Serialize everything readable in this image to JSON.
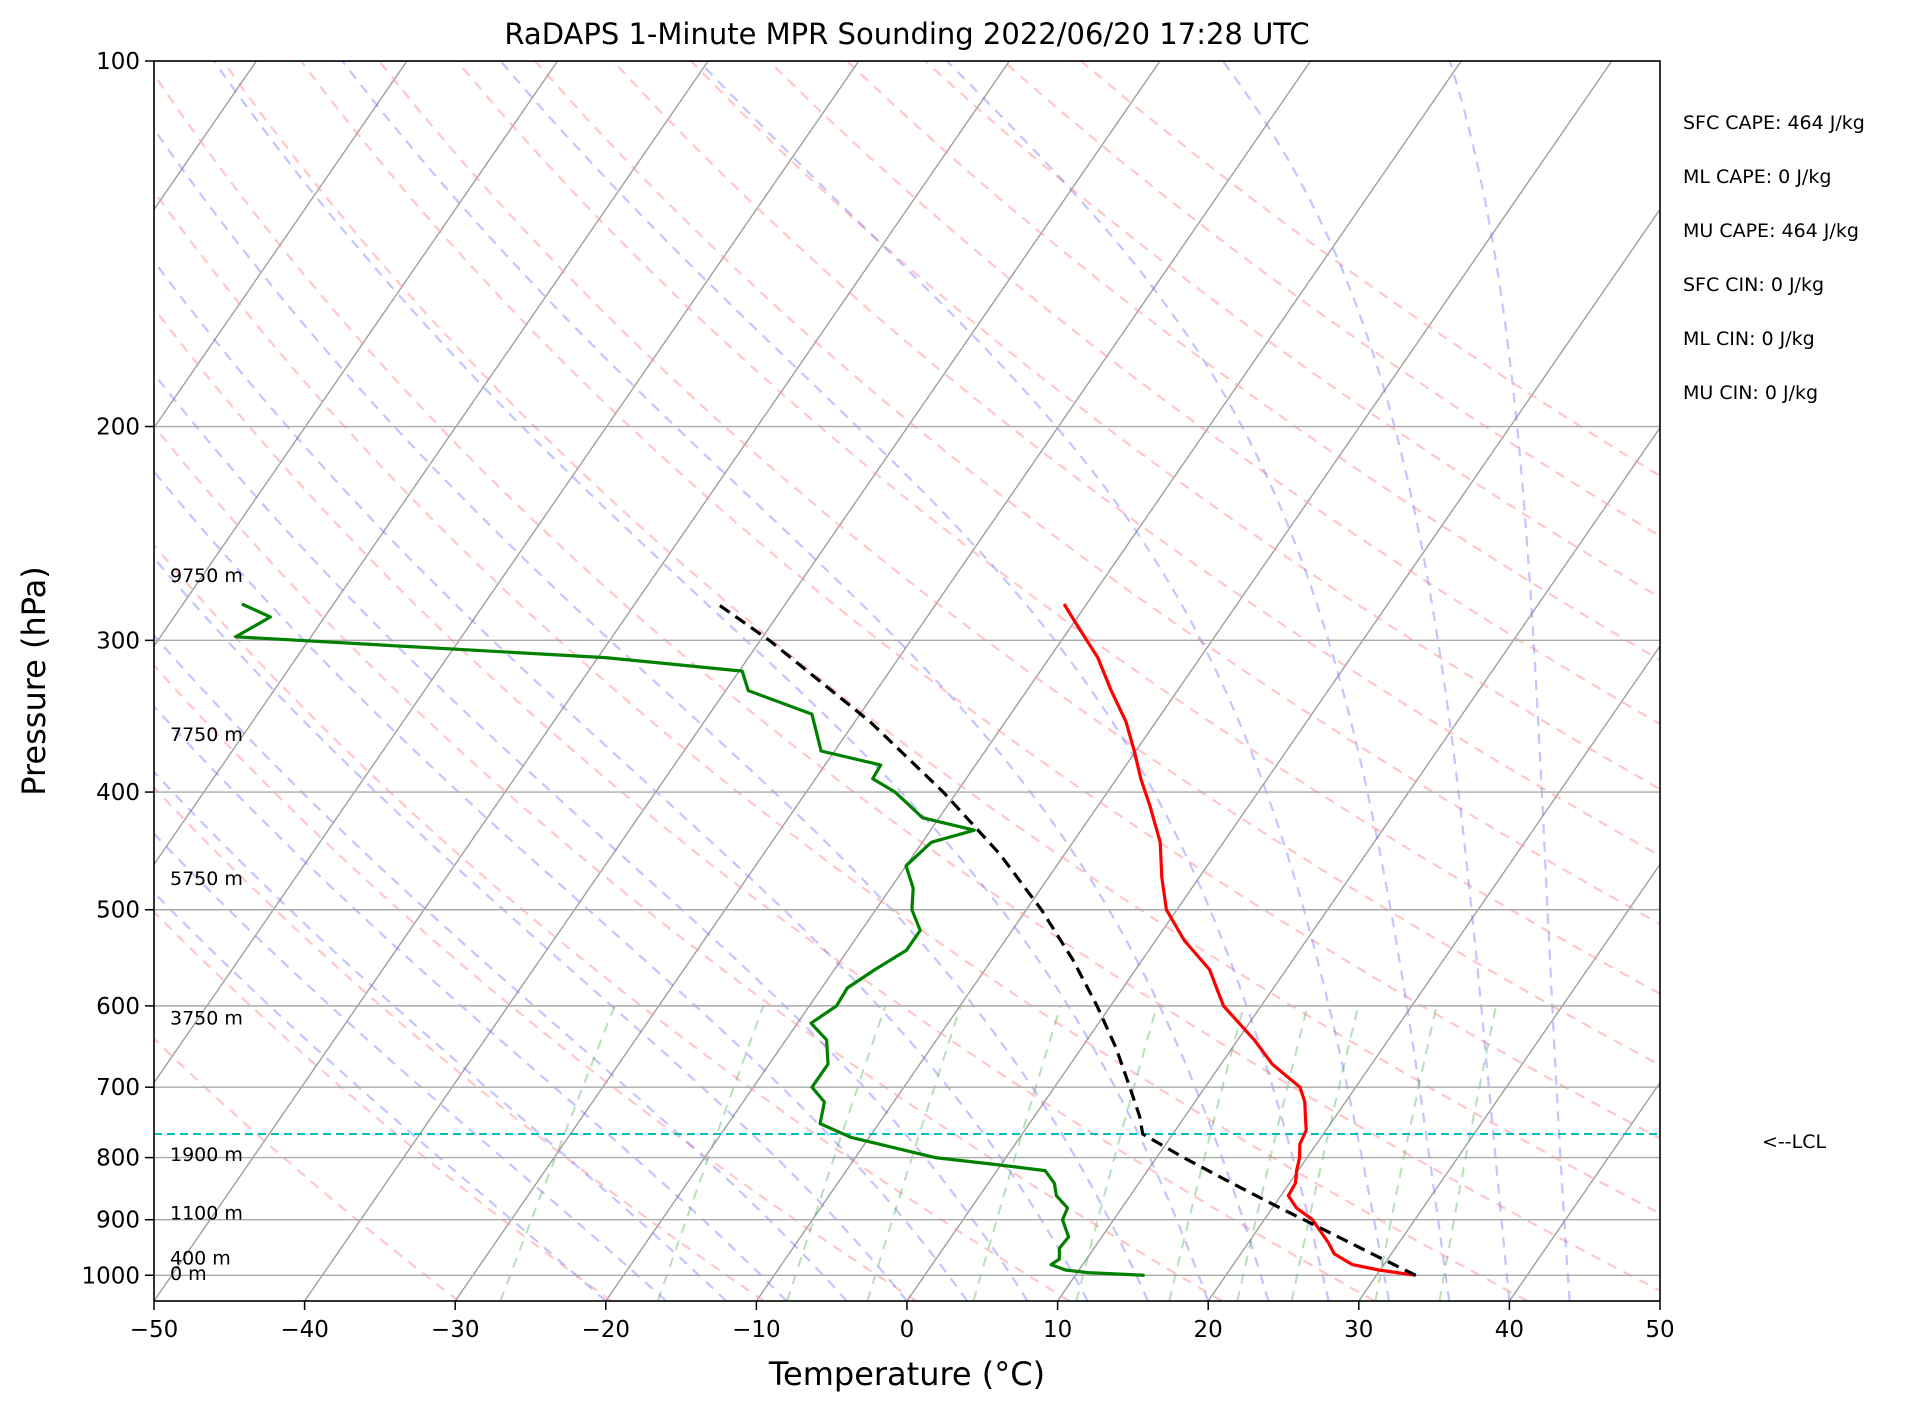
{
  "chart_data": {
    "type": "line",
    "subtype": "skew-T log-P sounding",
    "title": "RaDAPS 1-Minute MPR Sounding 2022/06/20 17:28 UTC",
    "xlabel": "Temperature (°C)",
    "ylabel": "Pressure (hPa)",
    "xlim": [
      -50,
      50
    ],
    "ylim": [
      1050,
      100
    ],
    "y_scale": "log",
    "grid": true,
    "x_ticks": [
      "−50",
      "−40",
      "−30",
      "−20",
      "−10",
      "0",
      "10",
      "20",
      "30",
      "40",
      "50"
    ],
    "y_ticks": [
      "100",
      "200",
      "300",
      "400",
      "500",
      "600",
      "700",
      "800",
      "900",
      "1000"
    ],
    "height_labels": [
      "9750 m",
      "7750 m",
      "5750 m",
      "3750 m",
      "1900 m",
      "1100 m",
      "400 m",
      "0 m"
    ],
    "lcl_label": "<--LCL",
    "lcl_pressure": 765,
    "indices": [
      "SFC CAPE: 464 J/kg",
      "ML CAPE: 0 J/kg",
      "MU CAPE: 464 J/kg",
      "SFC CIN: 0 J/kg",
      "ML CIN: 0 J/kg",
      "MU CIN: 0 J/kg"
    ],
    "series": [
      {
        "color": "#ff0000",
        "points": [
          [
            1000,
            32.6
          ],
          [
            990,
            29.9
          ],
          [
            980,
            27.9
          ],
          [
            960,
            26.2
          ],
          [
            940,
            25.3
          ],
          [
            900,
            23.2
          ],
          [
            880,
            21.6
          ],
          [
            860,
            20.5
          ],
          [
            840,
            20.4
          ],
          [
            820,
            19.9
          ],
          [
            800,
            19.5
          ],
          [
            780,
            18.9
          ],
          [
            760,
            18.7
          ],
          [
            740,
            18.0
          ],
          [
            720,
            17.3
          ],
          [
            700,
            16.3
          ],
          [
            670,
            13.4
          ],
          [
            640,
            11.1
          ],
          [
            600,
            7.5
          ],
          [
            560,
            4.9
          ],
          [
            530,
            1.9
          ],
          [
            500,
            -0.7
          ],
          [
            470,
            -2.5
          ],
          [
            440,
            -4.2
          ],
          [
            410,
            -6.6
          ],
          [
            390,
            -8.4
          ],
          [
            370,
            -10.1
          ],
          [
            350,
            -12.0
          ],
          [
            330,
            -14.4
          ],
          [
            310,
            -16.8
          ],
          [
            290,
            -19.9
          ],
          [
            280,
            -21.5
          ]
        ]
      },
      {
        "color": "#008000",
        "points": [
          [
            1000,
            14.6
          ],
          [
            995,
            10.7
          ],
          [
            990,
            9.1
          ],
          [
            980,
            7.9
          ],
          [
            970,
            8.2
          ],
          [
            950,
            7.7
          ],
          [
            930,
            7.8
          ],
          [
            900,
            6.6
          ],
          [
            880,
            6.4
          ],
          [
            860,
            5.1
          ],
          [
            840,
            4.4
          ],
          [
            820,
            3.2
          ],
          [
            810,
            -0.6
          ],
          [
            800,
            -4.7
          ],
          [
            770,
            -11.2
          ],
          [
            750,
            -13.9
          ],
          [
            720,
            -14.6
          ],
          [
            700,
            -16.1
          ],
          [
            670,
            -16.1
          ],
          [
            640,
            -17.3
          ],
          [
            620,
            -19.1
          ],
          [
            600,
            -18.2
          ],
          [
            580,
            -18.3
          ],
          [
            560,
            -17.3
          ],
          [
            540,
            -16.1
          ],
          [
            520,
            -16.1
          ],
          [
            500,
            -17.6
          ],
          [
            480,
            -18.5
          ],
          [
            460,
            -20.0
          ],
          [
            440,
            -19.4
          ],
          [
            430,
            -17.1
          ],
          [
            420,
            -21.1
          ],
          [
            400,
            -24.1
          ],
          [
            390,
            -26.2
          ],
          [
            380,
            -26.3
          ],
          [
            370,
            -30.9
          ],
          [
            345,
            -33.2
          ],
          [
            330,
            -38.5
          ],
          [
            318,
            -39.8
          ],
          [
            310,
            -49.5
          ],
          [
            298,
            -75.0
          ],
          [
            287,
            -73.6
          ],
          [
            280,
            -76.1
          ]
        ]
      },
      {
        "color": "#000000",
        "dashed": true,
        "points": [
          [
            1000,
            32.6
          ],
          [
            960,
            28.7
          ],
          [
            920,
            24.7
          ],
          [
            880,
            20.5
          ],
          [
            840,
            16.2
          ],
          [
            800,
            11.8
          ],
          [
            765,
            8.0
          ],
          [
            740,
            7.0
          ],
          [
            700,
            5.0
          ],
          [
            650,
            2.3
          ],
          [
            600,
            -0.9
          ],
          [
            550,
            -4.6
          ],
          [
            500,
            -9.0
          ],
          [
            450,
            -14.3
          ],
          [
            400,
            -20.9
          ],
          [
            350,
            -29.0
          ],
          [
            300,
            -39.4
          ],
          [
            280,
            -44.5
          ]
        ]
      }
    ]
  }
}
